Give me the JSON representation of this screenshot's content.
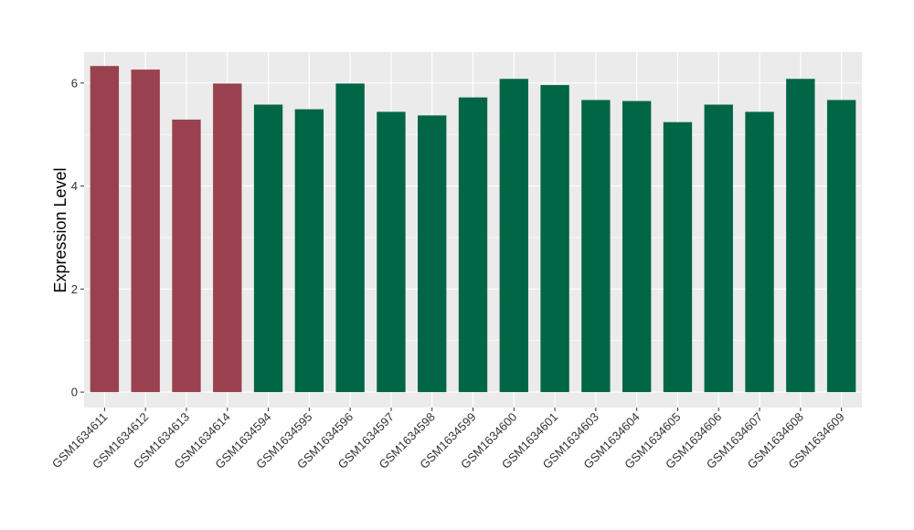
{
  "chart_data": {
    "type": "bar",
    "title": "",
    "xlabel": "",
    "ylabel": "Expression Level",
    "ylim": [
      -0.3,
      6.6
    ],
    "yticks": [
      0,
      2,
      4,
      6
    ],
    "grid": true,
    "categories": [
      "GSM1634611",
      "GSM1634612",
      "GSM1634613",
      "GSM1634614",
      "GSM1634594",
      "GSM1634595",
      "GSM1634596",
      "GSM1634597",
      "GSM1634598",
      "GSM1634599",
      "GSM1634600",
      "GSM1634601",
      "GSM1634603",
      "GSM1634604",
      "GSM1634605",
      "GSM1634606",
      "GSM1634607",
      "GSM1634608",
      "GSM1634609"
    ],
    "values": [
      6.33,
      6.26,
      5.29,
      5.99,
      5.58,
      5.49,
      5.99,
      5.44,
      5.37,
      5.72,
      6.08,
      5.96,
      5.67,
      5.65,
      5.24,
      5.58,
      5.44,
      6.08,
      5.67
    ],
    "groups": [
      "a",
      "a",
      "a",
      "a",
      "b",
      "b",
      "b",
      "b",
      "b",
      "b",
      "b",
      "b",
      "b",
      "b",
      "b",
      "b",
      "b",
      "b",
      "b"
    ],
    "colors": {
      "a": "#99414f",
      "b": "#006645",
      "panel": "#ebebeb",
      "grid": "#ffffff"
    }
  }
}
